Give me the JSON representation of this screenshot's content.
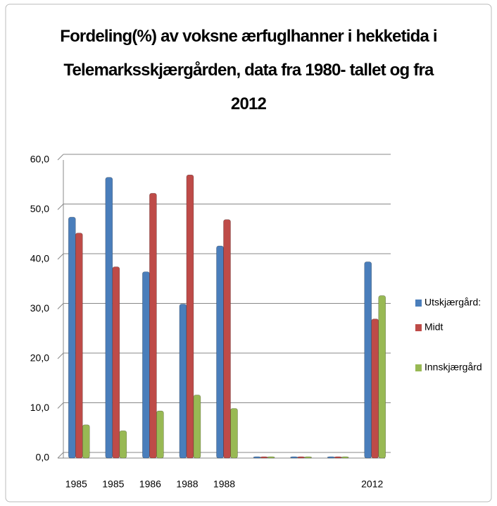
{
  "chart_data": {
    "type": "bar",
    "title": "Fordeling(%) av voksne ærfuglhanner i hekketida i Telemarksskjærgården, data fra 1980- tallet og fra 2012",
    "categories": [
      "1985",
      "1985",
      "1986",
      "1988",
      "1988",
      null,
      null,
      null,
      "2012"
    ],
    "series": [
      {
        "name": "Utskjærgård:",
        "color": "#4a7ebb",
        "values": [
          48.5,
          56.5,
          37.5,
          31.0,
          42.7,
          0,
          0,
          0,
          39.5
        ]
      },
      {
        "name": "Midt",
        "color": "#be4b48",
        "values": [
          45.3,
          38.5,
          53.3,
          57.0,
          48.0,
          0,
          0,
          0,
          28.0
        ]
      },
      {
        "name": "Innskjærgård",
        "color": "#98b954",
        "values": [
          6.7,
          5.5,
          9.5,
          12.7,
          10.0,
          0,
          0,
          0,
          32.7
        ]
      }
    ],
    "ylim": [
      0,
      60
    ],
    "yticks": [
      {
        "value": 0,
        "label": "0,0"
      },
      {
        "value": 10,
        "label": "10,0"
      },
      {
        "value": 20,
        "label": "20,0"
      },
      {
        "value": 30,
        "label": "30,0"
      },
      {
        "value": 40,
        "label": "40,0"
      },
      {
        "value": 50,
        "label": "50,0"
      },
      {
        "value": 60,
        "label": "60,0"
      }
    ],
    "grid": true,
    "legend": "right"
  }
}
